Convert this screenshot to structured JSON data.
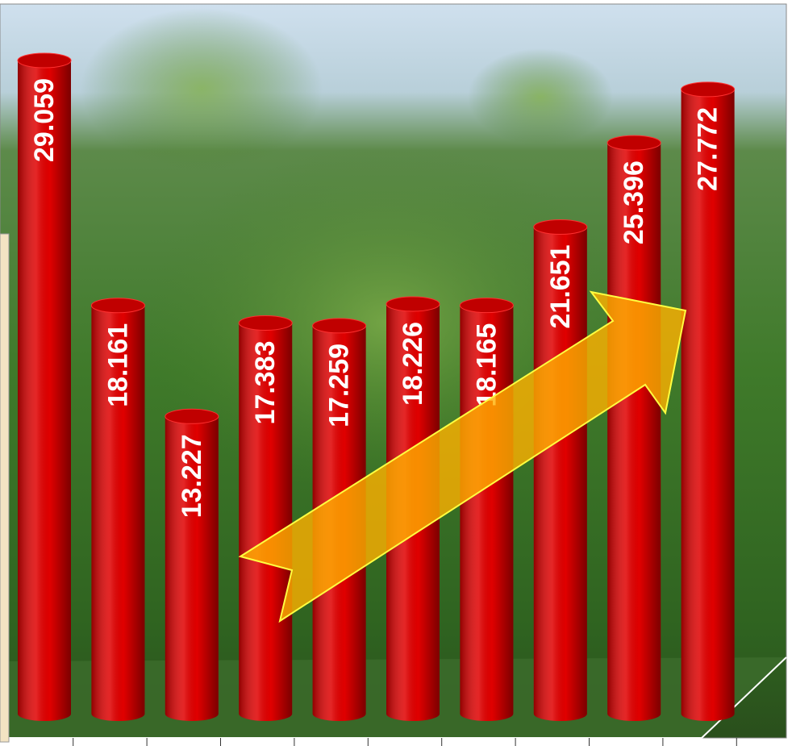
{
  "chart_data": {
    "type": "bar",
    "categories": [
      null,
      null,
      null,
      null,
      null,
      null,
      null,
      null,
      null,
      null
    ],
    "values": [
      29.059,
      18.161,
      13.227,
      17.383,
      17.259,
      18.226,
      18.165,
      21.651,
      25.396,
      27.772
    ],
    "color": "#e00000"
  }
}
